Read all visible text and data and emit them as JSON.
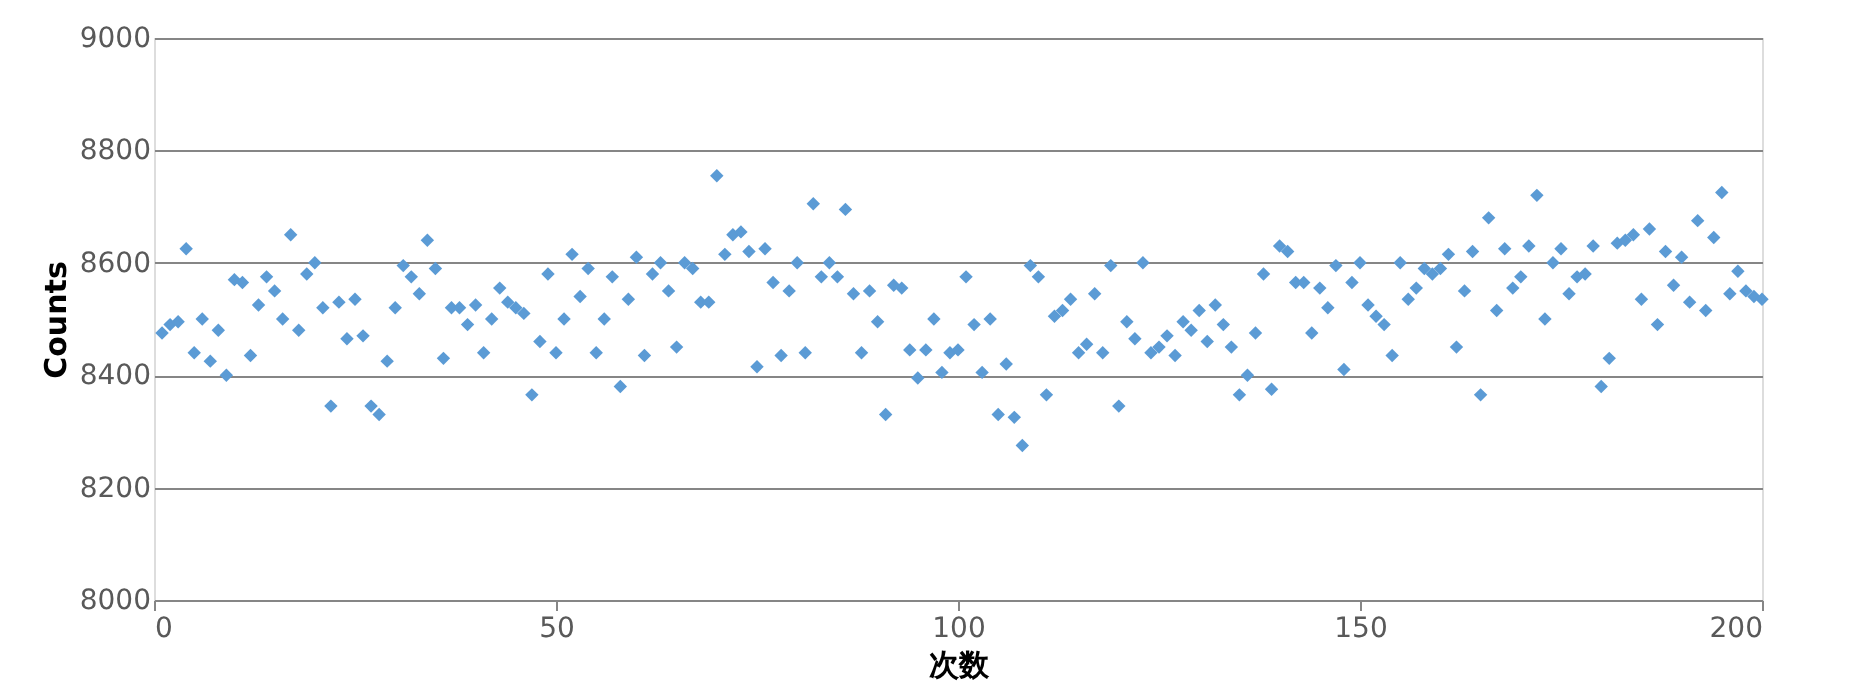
{
  "chart_data": {
    "type": "scatter",
    "xlabel": "次数",
    "ylabel": "Counts",
    "marker": "diamond",
    "grid": "y",
    "xlim": [
      0,
      200
    ],
    "xticks": [
      0,
      50,
      100,
      150,
      200
    ],
    "ylim": [
      8000,
      9000
    ],
    "yticks": [
      8000,
      8200,
      8400,
      8600,
      8800,
      9000
    ],
    "x": [
      1,
      2,
      3,
      4,
      5,
      6,
      7,
      8,
      9,
      10,
      11,
      12,
      13,
      14,
      15,
      16,
      17,
      18,
      19,
      20,
      21,
      22,
      23,
      24,
      25,
      26,
      27,
      28,
      29,
      30,
      31,
      32,
      33,
      34,
      35,
      36,
      37,
      38,
      39,
      40,
      41,
      42,
      43,
      44,
      45,
      46,
      47,
      48,
      49,
      50,
      51,
      52,
      53,
      54,
      55,
      56,
      57,
      58,
      59,
      60,
      61,
      62,
      63,
      64,
      65,
      66,
      67,
      68,
      69,
      70,
      71,
      72,
      73,
      74,
      75,
      76,
      77,
      78,
      79,
      80,
      81,
      82,
      83,
      84,
      85,
      86,
      87,
      88,
      89,
      90,
      91,
      92,
      93,
      94,
      95,
      96,
      97,
      98,
      99,
      100,
      101,
      102,
      103,
      104,
      105,
      106,
      107,
      108,
      109,
      110,
      111,
      112,
      113,
      114,
      115,
      116,
      117,
      118,
      119,
      120,
      121,
      122,
      123,
      124,
      125,
      126,
      127,
      128,
      129,
      130,
      131,
      132,
      133,
      134,
      135,
      136,
      137,
      138,
      139,
      140,
      141,
      142,
      143,
      144,
      145,
      146,
      147,
      148,
      149,
      150,
      151,
      152,
      153,
      154,
      155,
      156,
      157,
      158,
      159,
      160,
      161,
      162,
      163,
      164,
      165,
      166,
      167,
      168,
      169,
      170,
      171,
      172,
      173,
      174,
      175,
      176,
      177,
      178,
      179,
      180,
      181,
      182,
      183,
      184,
      185,
      186,
      187,
      188,
      189,
      190,
      191,
      192,
      193,
      194,
      195,
      196,
      197,
      198,
      199,
      200
    ],
    "series": [
      {
        "color": "#5b9bd5",
        "values": [
          8475,
          8490,
          8495,
          8625,
          8440,
          8500,
          8425,
          8480,
          8400,
          8570,
          8565,
          8435,
          8525,
          8575,
          8550,
          8500,
          8650,
          8480,
          8580,
          8600,
          8520,
          8345,
          8530,
          8465,
          8535,
          8470,
          8345,
          8330,
          8425,
          8520,
          8595,
          8575,
          8545,
          8640,
          8590,
          8430,
          8520,
          8520,
          8490,
          8525,
          8440,
          8500,
          8555,
          8530,
          8520,
          8510,
          8365,
          8460,
          8580,
          8440,
          8500,
          8615,
          8540,
          8590,
          8440,
          8500,
          8575,
          8380,
          8535,
          8610,
          8435,
          8580,
          8600,
          8550,
          8450,
          8600,
          8590,
          8530,
          8530,
          8755,
          8615,
          8650,
          8655,
          8620,
          8415,
          8625,
          8565,
          8435,
          8550,
          8600,
          8440,
          8705,
          8575,
          8600,
          8575,
          8695,
          8545,
          8440,
          8550,
          8495,
          8330,
          8560,
          8555,
          8445,
          8395,
          8445,
          8500,
          8405,
          8440,
          8445,
          8575,
          8490,
          8405,
          8500,
          8330,
          8420,
          8325,
          8275,
          8595,
          8575,
          8365,
          8505,
          8515,
          8535,
          8440,
          8455,
          8545,
          8440,
          8595,
          8345,
          8495,
          8465,
          8600,
          8440,
          8450,
          8470,
          8435,
          8495,
          8480,
          8515,
          8460,
          8525,
          8490,
          8450,
          8365,
          8400,
          8475,
          8580,
          8375,
          8630,
          8620,
          8565,
          8565,
          8475,
          8555,
          8520,
          8595,
          8410,
          8565,
          8600,
          8525,
          8505,
          8490,
          8435,
          8600,
          8535,
          8555,
          8590,
          8580,
          8590,
          8615,
          8450,
          8550,
          8620,
          8365,
          8680,
          8515,
          8625,
          8555,
          8575,
          8630,
          8720,
          8500,
          8600,
          8625,
          8545,
          8575,
          8580,
          8630,
          8380,
          8430,
          8635,
          8640,
          8650,
          8535,
          8660,
          8490,
          8620,
          8560,
          8610,
          8530,
          8675,
          8515,
          8645,
          8725,
          8545,
          8585,
          8550,
          8540,
          8535
        ]
      }
    ]
  }
}
